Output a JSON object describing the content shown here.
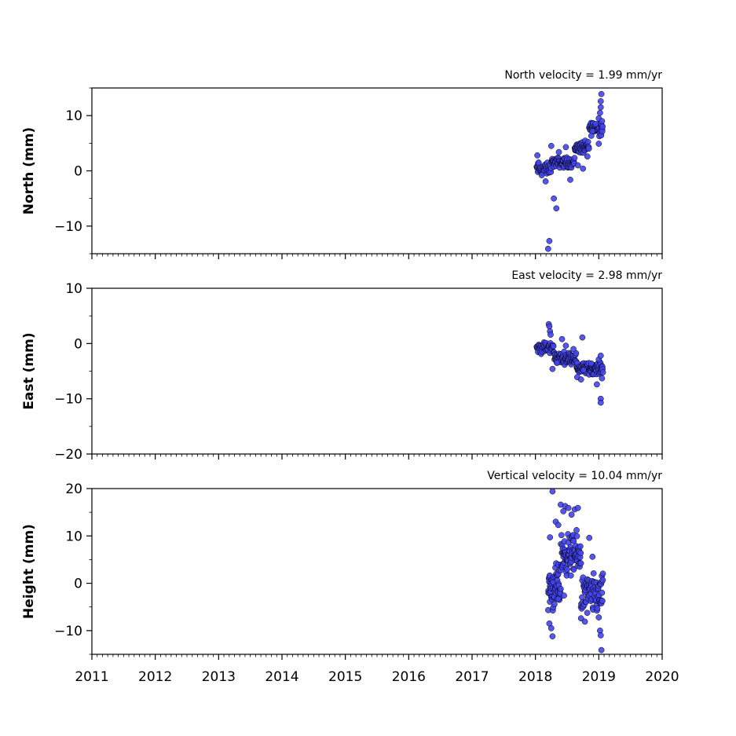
{
  "chart_data": [
    {
      "type": "scatter",
      "title": "North velocity = 1.99 mm/yr",
      "xlabel": "",
      "ylabel": "North (mm)",
      "xlim": [
        2011,
        2020
      ],
      "ylim": [
        -15,
        15
      ],
      "yticks": [
        10,
        0,
        -10
      ],
      "ytick_labels": [
        "10",
        "0",
        "−10"
      ],
      "xtick_labels": [],
      "marker_color": "#4444ee",
      "marker_edge": "#000000",
      "segments": [
        {
          "x0": 2018.02,
          "x1": 2018.25,
          "y": 0.3,
          "amp": 1.3,
          "n": 40
        },
        {
          "x0": 2018.25,
          "x1": 2018.62,
          "y": 1.5,
          "amp": 1.1,
          "n": 70
        },
        {
          "x0": 2018.62,
          "x1": 2018.85,
          "y": 4.2,
          "amp": 1.3,
          "n": 50
        },
        {
          "x0": 2018.85,
          "x1": 2019.06,
          "y": 7.8,
          "amp": 1.5,
          "n": 45
        }
      ],
      "points": [
        [
          2018.03,
          2.8
        ],
        [
          2018.05,
          1.5
        ],
        [
          2018.1,
          -0.8
        ],
        [
          2018.16,
          -1.9
        ],
        [
          2018.22,
          -12.7
        ],
        [
          2018.2,
          -14.1
        ],
        [
          2018.29,
          -5.0
        ],
        [
          2018.33,
          -6.8
        ],
        [
          2018.25,
          4.5
        ],
        [
          2018.37,
          3.4
        ],
        [
          2018.48,
          4.3
        ],
        [
          2018.55,
          -1.6
        ],
        [
          2018.67,
          1.0
        ],
        [
          2018.75,
          0.4
        ],
        [
          2018.9,
          7.2
        ],
        [
          2018.95,
          8.5
        ],
        [
          2019.0,
          9.5
        ],
        [
          2019.02,
          10.5
        ],
        [
          2019.03,
          11.5
        ],
        [
          2019.03,
          12.6
        ],
        [
          2019.04,
          13.9
        ],
        [
          2019.05,
          9.0
        ],
        [
          2019.06,
          8.0
        ],
        [
          2019.0,
          4.9
        ],
        [
          2018.82,
          2.6
        ]
      ]
    },
    {
      "type": "scatter",
      "title": "East velocity = 2.98 mm/yr",
      "xlabel": "",
      "ylabel": "East (mm)",
      "xlim": [
        2011,
        2020
      ],
      "ylim": [
        -20,
        10
      ],
      "yticks": [
        10,
        0,
        -10,
        -20
      ],
      "ytick_labels": [
        "10",
        "0",
        "−10",
        "−20"
      ],
      "xtick_labels": [],
      "marker_color": "#4444ee",
      "marker_edge": "#000000",
      "segments": [
        {
          "x0": 2018.02,
          "x1": 2018.3,
          "y": -0.8,
          "amp": 1.3,
          "n": 50
        },
        {
          "x0": 2018.3,
          "x1": 2018.65,
          "y": -2.6,
          "amp": 1.2,
          "n": 70
        },
        {
          "x0": 2018.65,
          "x1": 2019.07,
          "y": -4.5,
          "amp": 1.2,
          "n": 90
        }
      ],
      "points": [
        [
          2018.21,
          3.5
        ],
        [
          2018.22,
          3.1
        ],
        [
          2018.23,
          2.2
        ],
        [
          2018.24,
          1.6
        ],
        [
          2018.27,
          -4.6
        ],
        [
          2018.34,
          -3.5
        ],
        [
          2018.42,
          0.8
        ],
        [
          2018.48,
          -0.4
        ],
        [
          2018.6,
          -1.0
        ],
        [
          2018.66,
          -6.1
        ],
        [
          2018.72,
          -6.5
        ],
        [
          2018.74,
          1.1
        ],
        [
          2018.76,
          -4.8
        ],
        [
          2018.88,
          -3.6
        ],
        [
          2018.97,
          -7.4
        ],
        [
          2019.0,
          -2.9
        ],
        [
          2019.03,
          -10.0
        ],
        [
          2019.03,
          -10.7
        ],
        [
          2019.05,
          -6.3
        ],
        [
          2019.03,
          -2.2
        ]
      ]
    },
    {
      "type": "scatter",
      "title": "Vertical velocity = 10.04 mm/yr",
      "xlabel": "",
      "ylabel": "Height (mm)",
      "xlim": [
        2011,
        2020
      ],
      "ylim": [
        -15,
        20
      ],
      "yticks": [
        20,
        10,
        0,
        -10
      ],
      "ytick_labels": [
        "20",
        "10",
        "0",
        "−10"
      ],
      "xticks": [
        2011,
        2012,
        2013,
        2014,
        2015,
        2016,
        2017,
        2018,
        2019,
        2020
      ],
      "xtick_labels": [
        "2011",
        "2012",
        "2013",
        "2014",
        "2015",
        "2016",
        "2017",
        "2018",
        "2019",
        "2020"
      ],
      "marker_color": "#4444ee",
      "marker_edge": "#000000",
      "segments": [
        {
          "x0": 2018.2,
          "x1": 2018.4,
          "y": -1.0,
          "amp": 5.5,
          "n": 60
        },
        {
          "x0": 2018.4,
          "x1": 2018.72,
          "y": 6.0,
          "amp": 5.0,
          "n": 90
        },
        {
          "x0": 2018.72,
          "x1": 2019.07,
          "y": -2.5,
          "amp": 5.0,
          "n": 80
        }
      ],
      "points": [
        [
          2018.27,
          19.4
        ],
        [
          2018.23,
          9.7
        ],
        [
          2018.22,
          -8.5
        ],
        [
          2018.25,
          -9.5
        ],
        [
          2018.27,
          -11.2
        ],
        [
          2018.32,
          13.0
        ],
        [
          2018.36,
          12.3
        ],
        [
          2018.4,
          16.6
        ],
        [
          2018.44,
          15.2
        ],
        [
          2018.47,
          16.3
        ],
        [
          2018.52,
          15.9
        ],
        [
          2018.57,
          14.5
        ],
        [
          2018.62,
          15.6
        ],
        [
          2018.67,
          15.9
        ],
        [
          2018.72,
          -7.4
        ],
        [
          2018.78,
          -8.1
        ],
        [
          2018.85,
          9.6
        ],
        [
          2018.9,
          5.6
        ],
        [
          2019.0,
          -7.2
        ],
        [
          2019.02,
          -10.0
        ],
        [
          2019.03,
          -11.0
        ],
        [
          2019.04,
          -14.1
        ],
        [
          2019.05,
          -2.0
        ],
        [
          2018.36,
          -3.3
        ],
        [
          2018.45,
          -2.6
        ]
      ]
    }
  ]
}
